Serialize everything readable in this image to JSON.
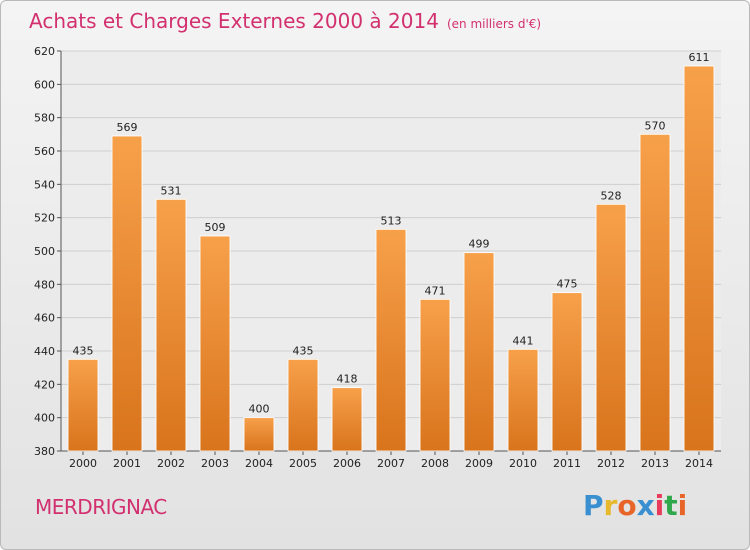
{
  "header": {
    "title": "Achats et Charges Externes 2000 à 2014",
    "subtitle": "(en milliers d'€)"
  },
  "footer": {
    "commune": "MERDRIGNAC",
    "brand_letters": [
      "P",
      "r",
      "o",
      "x",
      "i",
      "t",
      "i"
    ],
    "brand_colors": [
      "#3a8fd1",
      "#e8b82c",
      "#e8652a",
      "#3a8fd1",
      "#e83a5a",
      "#2ea84a",
      "#e8652a"
    ]
  },
  "chart_data": {
    "type": "bar",
    "categories": [
      "2000",
      "2001",
      "2002",
      "2003",
      "2004",
      "2005",
      "2006",
      "2007",
      "2008",
      "2009",
      "2010",
      "2011",
      "2012",
      "2013",
      "2014"
    ],
    "values": [
      435,
      569,
      531,
      509,
      400,
      435,
      418,
      513,
      471,
      499,
      441,
      475,
      528,
      570,
      611
    ],
    "yticks": [
      380,
      400,
      420,
      440,
      460,
      480,
      500,
      520,
      540,
      560,
      580,
      600,
      620
    ],
    "ylim": [
      380,
      620
    ],
    "grid": true,
    "bar_color": "#f0922e"
  }
}
